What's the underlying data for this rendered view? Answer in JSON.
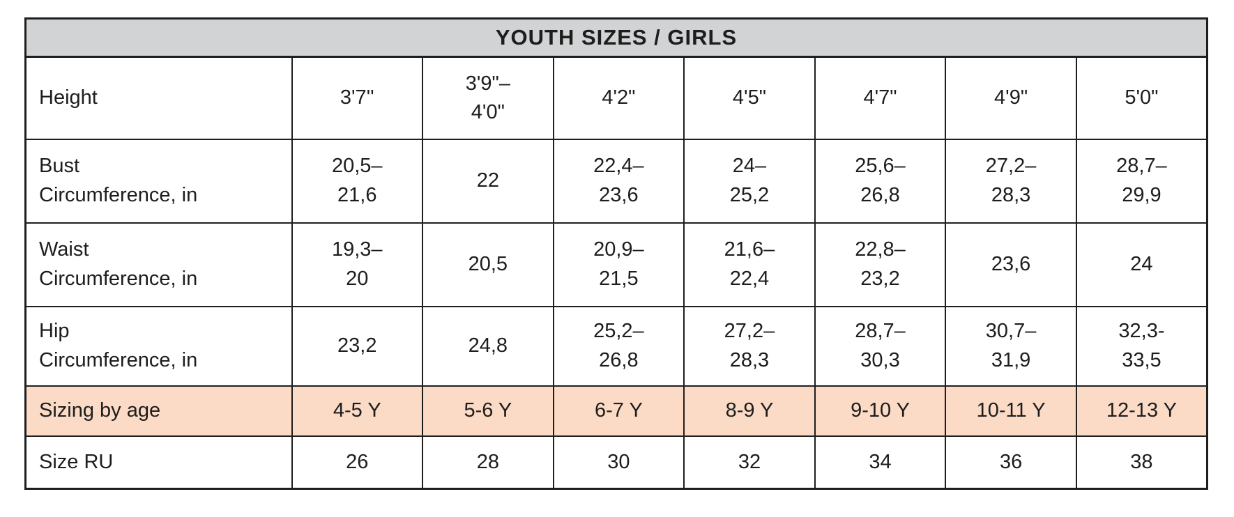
{
  "title": "YOUTH SIZES / GIRLS",
  "colors": {
    "header_bg": "#d2d3d4",
    "highlight_bg": "#fbdac6",
    "border": "#1e1e1e",
    "text": "#1d1d1d"
  },
  "table": {
    "rows": [
      {
        "label": "Height",
        "values": [
          "3'7''",
          "3'9\"–\n4'0\"",
          "4'2\"",
          "4'5\"",
          "4'7\"",
          "4'9\"",
          "5'0\""
        ]
      },
      {
        "label": "Bust\nCircumference, in",
        "values": [
          "20,5–\n21,6",
          "22",
          "22,4–\n23,6",
          "24–\n25,2",
          "25,6–\n26,8",
          "27,2–\n28,3",
          "28,7–\n29,9"
        ]
      },
      {
        "label": "Waist\nCircumference, in",
        "values": [
          "19,3–\n20",
          "20,5",
          "20,9–\n21,5",
          "21,6–\n22,4",
          "22,8–\n23,2",
          "23,6",
          "24"
        ]
      },
      {
        "label": "Hip\nCircumference, in",
        "values": [
          "23,2",
          "24,8",
          "25,2–\n26,8",
          "27,2–\n28,3",
          "28,7–\n30,3",
          "30,7–\n31,9",
          "32,3-\n33,5"
        ]
      },
      {
        "label": "Sizing by age",
        "values": [
          "4-5 Y",
          "5-6 Y",
          "6-7 Y",
          "8-9 Y",
          "9-10 Y",
          "10-11 Y",
          "12-13 Y"
        ]
      },
      {
        "label": "Size RU",
        "values": [
          "26",
          "28",
          "30",
          "32",
          "34",
          "36",
          "38"
        ]
      }
    ]
  }
}
